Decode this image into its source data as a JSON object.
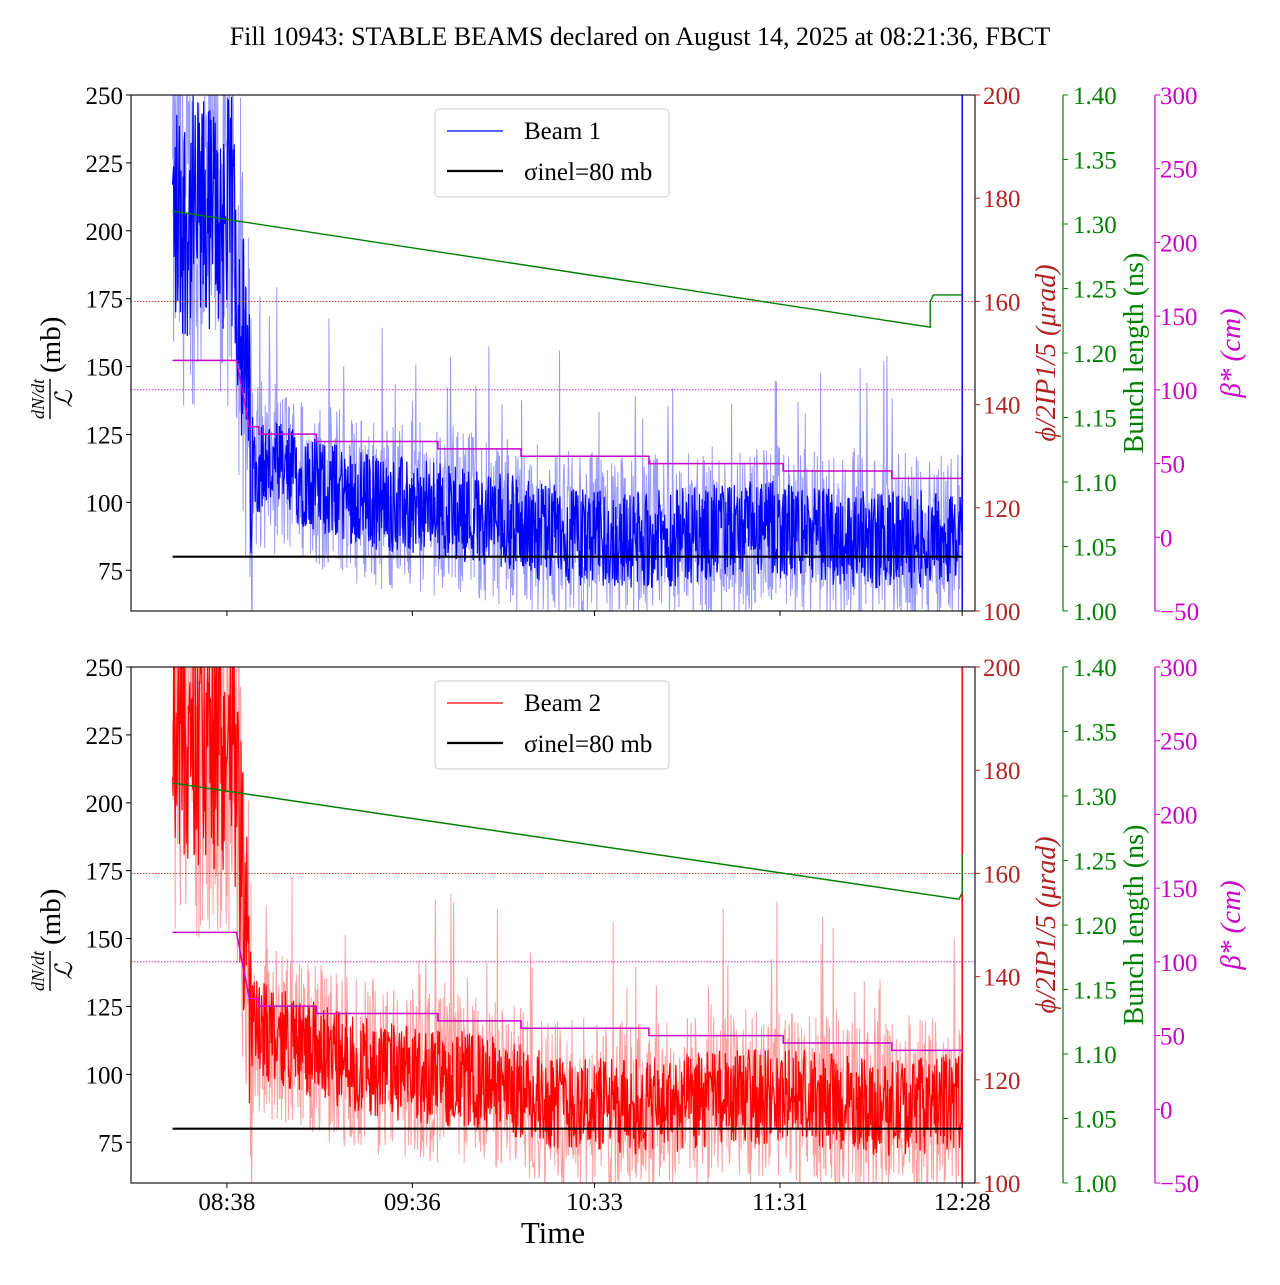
{
  "figure": {
    "title": "Fill 10943: STABLE BEAMS declared on August 14, 2025 at 08:21:36, FBCT",
    "xlabel": "Time"
  },
  "colors": {
    "beam1": "#0000ff",
    "beam1_light": "#9a9aff",
    "beam2": "#ff0000",
    "beam2_light": "#ffa0a0",
    "sigma": "#000000",
    "angle": "#b22222",
    "bunch": "#008000",
    "beta": "#cc00cc"
  },
  "chart_data": [
    {
      "type": "line",
      "panel": "top",
      "legend": {
        "placement": "top-center",
        "entries": [
          "Beam 1",
          "σinel=80 mb"
        ]
      },
      "x_axis": {
        "label": "Time",
        "ticks": [
          "08:38",
          "09:36",
          "10:33",
          "11:31",
          "12:28"
        ],
        "tick_labels_visible": false
      },
      "y_axes": {
        "left": {
          "label_num": "dN/dt",
          "label_den": "ℒ",
          "label_unit": "(mb)",
          "range": [
            60,
            250
          ],
          "ticks": [
            75,
            100,
            125,
            150,
            175,
            200,
            225,
            250
          ]
        },
        "angle": {
          "label": "ϕ/2IP1/5 (μrad)",
          "range": [
            100,
            200
          ],
          "ticks": [
            100,
            120,
            140,
            160,
            180,
            200
          ]
        },
        "bunch": {
          "label": "Bunch length (ns)",
          "range": [
            1.0,
            1.4
          ],
          "ticks": [
            "1.00",
            "1.05",
            "1.10",
            "1.15",
            "1.20",
            "1.25",
            "1.30",
            "1.35",
            "1.40"
          ]
        },
        "beta": {
          "label": "β* (cm)",
          "range": [
            -50,
            300
          ],
          "ticks": [
            -50,
            0,
            50,
            100,
            150,
            200,
            250,
            300
          ]
        }
      },
      "series": [
        {
          "name": "Beam 1",
          "axis": "left",
          "description_values": {
            "start_time": "08:21",
            "end_time": "12:28",
            "initial_level_mb": 205,
            "settled_level_mb": 88
          }
        },
        {
          "name": "σinel=80 mb",
          "axis": "left",
          "value": 80
        },
        {
          "axis": "angle",
          "value": 160
        },
        {
          "axis": "beta",
          "value": 100
        },
        {
          "axis": "bunch",
          "x": [
            "08:21",
            "12:18",
            "12:18",
            "12:19",
            "12:28"
          ],
          "y": [
            1.31,
            1.22,
            1.24,
            1.245,
            1.245
          ]
        },
        {
          "axis": "beta",
          "x": [
            "08:21",
            "08:41",
            "08:45",
            "08:48",
            "09:06",
            "09:44",
            "10:10",
            "10:50",
            "11:32",
            "12:06",
            "12:28"
          ],
          "y": [
            120,
            120,
            75,
            70,
            65,
            60,
            55,
            50,
            45,
            40,
            40
          ]
        }
      ]
    },
    {
      "type": "line",
      "panel": "bottom",
      "legend": {
        "placement": "top-center",
        "entries": [
          "Beam 2",
          "σinel=80 mb"
        ]
      },
      "x_axis": {
        "label": "Time",
        "ticks": [
          "08:38",
          "09:36",
          "10:33",
          "11:31",
          "12:28"
        ],
        "tick_labels_visible": true
      },
      "y_axes": {
        "left": {
          "label_num": "dN/dt",
          "label_den": "ℒ",
          "label_unit": "(mb)",
          "range": [
            60,
            250
          ],
          "ticks": [
            75,
            100,
            125,
            150,
            175,
            200,
            225,
            250
          ]
        },
        "angle": {
          "label": "ϕ/2IP1/5 (μrad)",
          "range": [
            100,
            200
          ],
          "ticks": [
            100,
            120,
            140,
            160,
            180,
            200
          ]
        },
        "bunch": {
          "label": "Bunch length (ns)",
          "range": [
            1.0,
            1.4
          ],
          "ticks": [
            "1.00",
            "1.05",
            "1.10",
            "1.15",
            "1.20",
            "1.25",
            "1.30",
            "1.35",
            "1.40"
          ]
        },
        "beta": {
          "label": "β* (cm)",
          "range": [
            -50,
            300
          ],
          "ticks": [
            -50,
            0,
            50,
            100,
            150,
            200,
            250,
            300
          ]
        }
      },
      "series": [
        {
          "name": "Beam 2",
          "axis": "left",
          "description_values": {
            "start_time": "08:21",
            "end_time": "12:28",
            "initial_level_mb": 220,
            "settled_level_mb": 90
          }
        },
        {
          "name": "σinel=80 mb",
          "axis": "left",
          "value": 80
        },
        {
          "axis": "angle",
          "value": 160
        },
        {
          "axis": "beta",
          "value": 100
        },
        {
          "axis": "bunch",
          "x": [
            "08:21",
            "12:27",
            "12:28",
            "12:28"
          ],
          "y": [
            1.31,
            1.22,
            1.225,
            1.255
          ]
        },
        {
          "axis": "beta",
          "x": [
            "08:21",
            "08:41",
            "08:45",
            "08:48",
            "09:06",
            "09:44",
            "10:10",
            "10:50",
            "11:32",
            "12:06",
            "12:28"
          ],
          "y": [
            120,
            120,
            75,
            70,
            65,
            60,
            55,
            50,
            45,
            40,
            40
          ]
        }
      ]
    }
  ]
}
